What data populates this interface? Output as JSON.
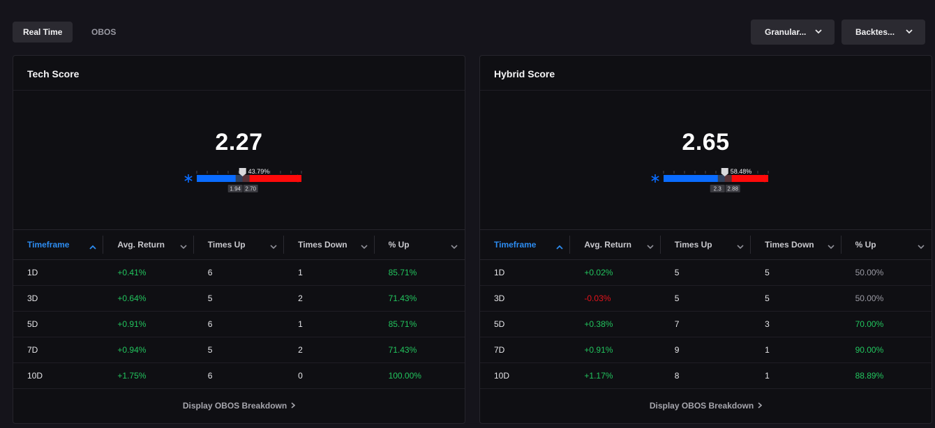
{
  "tabs": [
    {
      "label": "Real Time",
      "active": true
    },
    {
      "label": "OBOS",
      "active": false
    }
  ],
  "dropdowns": [
    {
      "label": "Granular..."
    },
    {
      "label": "Backtes..."
    }
  ],
  "colors": {
    "positive": "#22c55e",
    "negative": "#e5131b",
    "accent": "#2d8cf0",
    "bear": "#0a6cff",
    "bull": "#ff0a0a"
  },
  "cards": [
    {
      "title": "Tech Score",
      "score": "2.27",
      "gauge": {
        "percent_label": "43.79%",
        "fraction": 0.4379,
        "low_label": "1.94",
        "high_label": "2.70",
        "cold_icon": "snowflake-icon",
        "hot_icon": "flame-icon"
      },
      "columns": [
        "Timeframe",
        "Avg. Return",
        "Times Up",
        "Times Down",
        "% Up"
      ],
      "rows": [
        [
          "1D",
          "+0.41%",
          "6",
          "1",
          "85.71%"
        ],
        [
          "3D",
          "+0.64%",
          "5",
          "2",
          "71.43%"
        ],
        [
          "5D",
          "+0.91%",
          "6",
          "1",
          "85.71%"
        ],
        [
          "7D",
          "+0.94%",
          "5",
          "2",
          "71.43%"
        ],
        [
          "10D",
          "+1.75%",
          "6",
          "0",
          "100.00%"
        ]
      ],
      "footer": "Display OBOS Breakdown"
    },
    {
      "title": "Hybrid Score",
      "score": "2.65",
      "gauge": {
        "percent_label": "58.48%",
        "fraction": 0.5848,
        "low_label": "2.3",
        "high_label": "2.88",
        "cold_icon": "snowflake-icon",
        "hot_icon": "flame-icon"
      },
      "columns": [
        "Timeframe",
        "Avg. Return",
        "Times Up",
        "Times Down",
        "% Up"
      ],
      "rows": [
        [
          "1D",
          "+0.02%",
          "5",
          "5",
          "50.00%"
        ],
        [
          "3D",
          "-0.03%",
          "5",
          "5",
          "50.00%"
        ],
        [
          "5D",
          "+0.38%",
          "7",
          "3",
          "70.00%"
        ],
        [
          "7D",
          "+0.91%",
          "9",
          "1",
          "90.00%"
        ],
        [
          "10D",
          "+1.17%",
          "8",
          "1",
          "88.89%"
        ]
      ],
      "footer": "Display OBOS Breakdown"
    }
  ]
}
